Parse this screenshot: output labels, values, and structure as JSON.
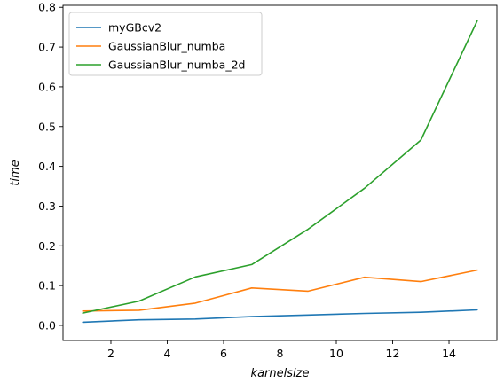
{
  "chart_data": {
    "type": "line",
    "title": "",
    "xlabel": "karnelsize",
    "ylabel": "time",
    "xlim": [
      0.3,
      15.7
    ],
    "ylim": [
      -0.038,
      0.805
    ],
    "xticks": [
      2,
      4,
      6,
      8,
      10,
      12,
      14
    ],
    "yticks": [
      0.0,
      0.1,
      0.2,
      0.3,
      0.4,
      0.5,
      0.6,
      0.7,
      0.8
    ],
    "grid": false,
    "legend_position": "top-left",
    "x": [
      1,
      3,
      5,
      7,
      9,
      11,
      13,
      15
    ],
    "series": [
      {
        "name": "myGBcv2",
        "color": "#1f77b4",
        "values": [
          0.008,
          0.014,
          0.016,
          0.022,
          0.026,
          0.03,
          0.033,
          0.039
        ]
      },
      {
        "name": "GaussianBlur_numba",
        "color": "#ff7f0e",
        "values": [
          0.036,
          0.038,
          0.056,
          0.094,
          0.086,
          0.121,
          0.11,
          0.139
        ]
      },
      {
        "name": "GaussianBlur_numba_2d",
        "color": "#2ca02c",
        "values": [
          0.031,
          0.061,
          0.122,
          0.153,
          0.242,
          0.345,
          0.466,
          0.766
        ]
      }
    ]
  }
}
